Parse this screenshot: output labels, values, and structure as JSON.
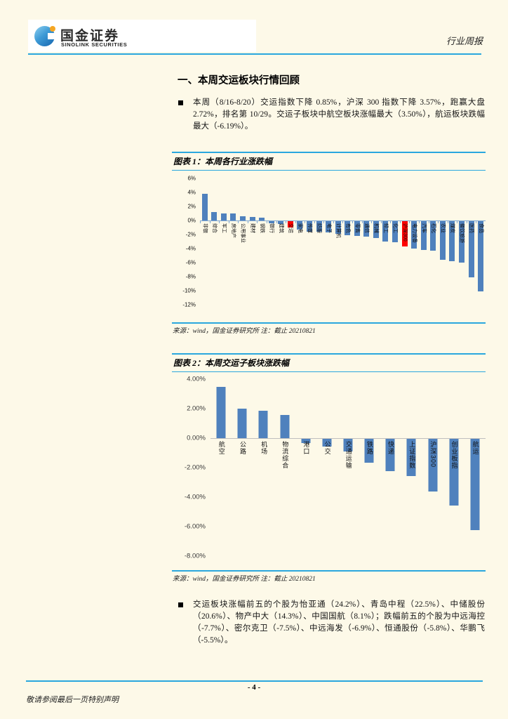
{
  "page": {
    "background_color": "#FDF9E8",
    "accent_blue": "#2AA7DE"
  },
  "header": {
    "brand_cn": "国金证券",
    "brand_en": "SINOLINK SECURITIES",
    "logo_icon": "sinolink-logo-icon",
    "report_type": "行业周报"
  },
  "section": {
    "title": "一、本周交运板块行情回顾",
    "bullet1": "本周（8/16-8/20）交运指数下降 0.85%，沪深 300 指数下降 3.57%，跑赢大盘 2.72%，排名第 10/29。交运子板块中航空板块涨幅最大（3.50%），航运板块跌幅最大（-6.19%）。",
    "bullet2": "交运板块涨幅前五的个股为怡亚通（24.2%）、青岛中程（22.5%）、中储股份（20.6%）、物产中大（14.3%）、中国国航（8.1%）；跌幅前五的个股为中远海控（-7.7%）、密尔克卫（-7.5%）、中远海发（-6.9%）、恒通股份（-5.8%）、华鹏飞（-5.5%）。"
  },
  "figure1": {
    "title": "图表 1：本周各行业涨跌幅",
    "source": "来源：wind，国金证券研究所 注：截止 20210821"
  },
  "figure2": {
    "title": "图表 2：本周交运子板块涨跌幅",
    "source": "来源：wind，国金证券研究所 注：截止 20210821"
  },
  "footer": {
    "page_number": "- 4 -",
    "disclaimer": "敬请参阅最后一页特别声明"
  },
  "chart_data": [
    {
      "type": "bar",
      "title": "本周各行业涨跌幅",
      "categories": [
        "非银",
        "综合",
        "军工",
        "房地产",
        "公用事业",
        "建材",
        "钢铁",
        "银行",
        "建筑",
        "交运",
        "家电",
        "传媒",
        "纺服",
        "电子",
        "计算机",
        "有色",
        "零售",
        "通信",
        "机械",
        "轻工",
        "化工",
        "沪深300",
        "电力设备",
        "汽车",
        "石化",
        "农业",
        "煤炭",
        "餐饮旅游",
        "医药",
        "食品"
      ],
      "values": [
        3.8,
        1.2,
        1.0,
        1.0,
        0.65,
        0.5,
        0.4,
        -0.3,
        -0.4,
        -0.85,
        -1.2,
        -1.45,
        -1.5,
        -1.6,
        -1.8,
        -2.0,
        -2.1,
        -2.2,
        -2.4,
        -2.9,
        -3.0,
        -3.57,
        -3.9,
        -4.1,
        -4.15,
        -5.5,
        -5.7,
        -5.9,
        -8.0,
        -10.0
      ],
      "highlight_indices": [
        9,
        21
      ],
      "bar_color": "#4F81BD",
      "highlight_color": "#FF0000",
      "ylim": [
        -12,
        6
      ],
      "ytick_step": 2,
      "yticks": [
        "6%",
        "4%",
        "2%",
        "0%",
        "-2%",
        "-4%",
        "-6%",
        "-8%",
        "-10%",
        "-12%"
      ],
      "xlabel": "",
      "ylabel": "",
      "grid": false,
      "legend": "none"
    },
    {
      "type": "bar",
      "title": "本周交运子板块涨跌幅",
      "categories": [
        "航空",
        "公路",
        "机场",
        "物流综合",
        "港口",
        "公交",
        "交通运输",
        "铁路",
        "快递",
        "上证指数",
        "沪深300",
        "创业板指",
        "航运"
      ],
      "values": [
        3.5,
        2.0,
        1.85,
        1.55,
        -0.3,
        -0.5,
        -0.85,
        -1.6,
        -2.2,
        -2.5,
        -3.57,
        -4.5,
        -6.19
      ],
      "highlight_indices": [],
      "bar_color": "#4F81BD",
      "highlight_color": "#FF0000",
      "ylim": [
        -8,
        4
      ],
      "ytick_step": 2,
      "yticks": [
        "4.00%",
        "2.00%",
        "0.00%",
        "-2.00%",
        "-4.00%",
        "-6.00%",
        "-8.00%"
      ],
      "xlabel": "",
      "ylabel": "",
      "grid": false,
      "legend": "none"
    }
  ]
}
